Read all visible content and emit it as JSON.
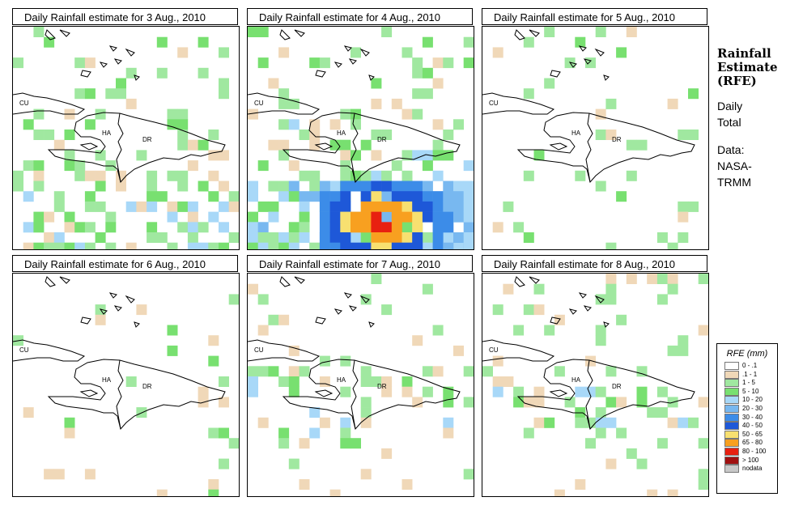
{
  "panels": [
    {
      "title": "Daily Rainfall estimate for  3 Aug., 2010",
      "id": "p1"
    },
    {
      "title": "Daily Rainfall estimate for  4 Aug., 2010",
      "id": "p2"
    },
    {
      "title": "Daily Rainfall estimate for  5 Aug., 2010",
      "id": "p3"
    },
    {
      "title": "Daily Rainfall estimate for  6 Aug., 2010",
      "id": "p4"
    },
    {
      "title": "Daily Rainfall estimate for  7 Aug., 2010",
      "id": "p5"
    },
    {
      "title": "Daily Rainfall estimate for  8 Aug., 2010",
      "id": "p6"
    }
  ],
  "map_labels": {
    "cu": "CU",
    "ha": "HA",
    "dr": "DR"
  },
  "side": {
    "title_line1": "Rainfall",
    "title_line2": "Estimate",
    "title_line3": "(RFE)",
    "period_line1": "Daily",
    "period_line2": "Total",
    "source_line1": "Data:",
    "source_line2": "NASA-",
    "source_line3": "TRMM"
  },
  "legend": {
    "title": "RFE (mm)",
    "items": [
      {
        "label": "0 - .1",
        "color": "#ffffff"
      },
      {
        "label": ".1 - 1",
        "color": "#f0d8b8"
      },
      {
        "label": "1 - 5",
        "color": "#a0e8a0"
      },
      {
        "label": "5 - 10",
        "color": "#78e070"
      },
      {
        "label": "10 - 20",
        "color": "#a8d8f8"
      },
      {
        "label": "20 - 30",
        "color": "#78b8f0"
      },
      {
        "label": "30 - 40",
        "color": "#3c8ce8"
      },
      {
        "label": "40 - 50",
        "color": "#1e58d8"
      },
      {
        "label": "50 - 65",
        "color": "#f8e070"
      },
      {
        "label": "65 - 80",
        "color": "#f8a020"
      },
      {
        "label": "80 - 100",
        "color": "#e82010"
      },
      {
        "label": "> 100",
        "color": "#a01010"
      },
      {
        "label": "nodata",
        "color": "#c8c8c8"
      }
    ]
  }
}
